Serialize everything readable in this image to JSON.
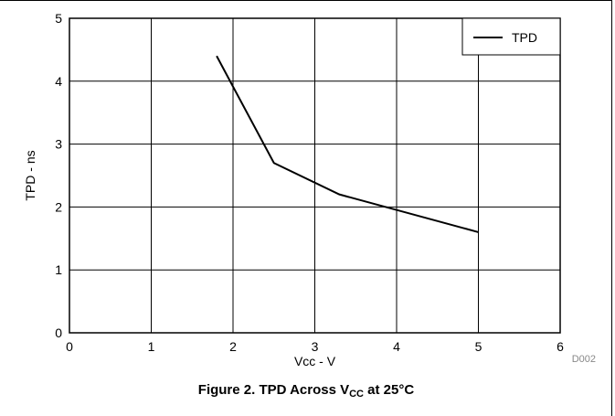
{
  "chart_data": {
    "type": "line",
    "xlabel": "Vcc - V",
    "ylabel": "TPD - ns",
    "xlim": [
      0,
      6
    ],
    "ylim": [
      0,
      5
    ],
    "xticks": [
      0,
      1,
      2,
      3,
      4,
      5,
      6
    ],
    "yticks": [
      0,
      1,
      2,
      3,
      4,
      5
    ],
    "grid": true,
    "legend_position": "top-right",
    "series": [
      {
        "name": "TPD",
        "color": "#000000",
        "x": [
          1.8,
          2.5,
          3.3,
          5.0
        ],
        "y": [
          4.4,
          2.7,
          2.2,
          1.6
        ]
      }
    ],
    "figure_code": "D002"
  },
  "caption": {
    "prefix": "Figure 2. TPD Across V",
    "sub": "CC",
    "suffix": " at 25°C"
  }
}
